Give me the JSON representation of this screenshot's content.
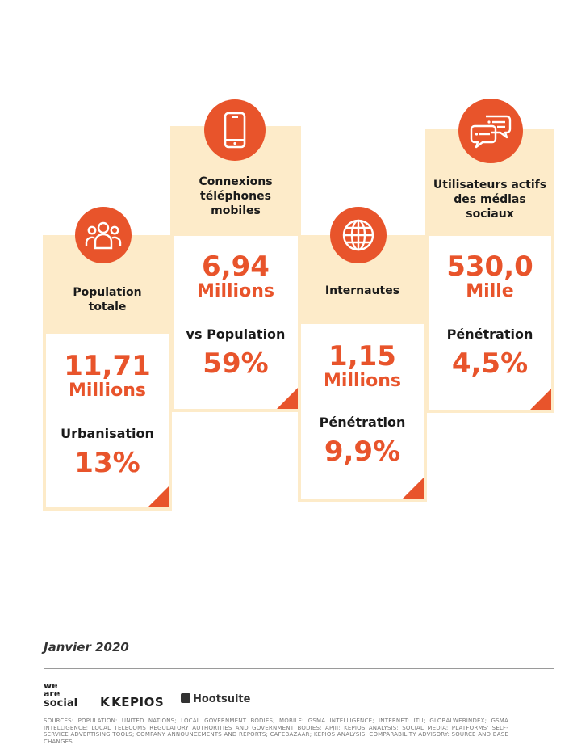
{
  "colors": {
    "accent": "#e8542b",
    "card_bg": "#fdebc9",
    "text": "#1a1a1a"
  },
  "stats": [
    {
      "icon": "people-icon",
      "label_lines": [
        "Population",
        "totale"
      ],
      "value": "11,71",
      "unit": "Millions",
      "sub_label": "Urbanisation",
      "sub_value": "13%"
    },
    {
      "icon": "mobile-phone-icon",
      "label_lines": [
        "Connexions",
        "téléphones",
        "mobiles"
      ],
      "value": "6,94",
      "unit": "Millions",
      "sub_label": "vs Population",
      "sub_value": "59%"
    },
    {
      "icon": "globe-icon",
      "label_lines": [
        "Internautes"
      ],
      "value": "1,15",
      "unit": "Millions",
      "sub_label": "Pénétration",
      "sub_value": "9,9%"
    },
    {
      "icon": "chat-bubbles-icon",
      "label_lines": [
        "Utilisateurs actifs",
        "des médias",
        "sociaux"
      ],
      "value": "530,0",
      "unit": "Mille",
      "sub_label": "Pénétration",
      "sub_value": "4,5%"
    }
  ],
  "footer": {
    "date": "Janvier 2020",
    "logos": {
      "we_are_social": [
        "we",
        "are",
        "social"
      ],
      "kepios": "KEPIOS",
      "hootsuite": "Hootsuite"
    },
    "sources": "SOURCES: POPULATION: UNITED NATIONS; LOCAL GOVERNMENT BODIES; MOBILE: GSMA INTELLIGENCE; INTERNET: ITU; GLOBALWEBINDEX; GSMA INTELLIGENCE; LOCAL TELECOMS REGULATORY AUTHORITIES AND GOVERNMENT BODIES; APJII; KEPIOS ANALYSIS; SOCIAL MEDIA: PLATFORMS' SELF-SERVICE ADVERTISING TOOLS; COMPANY ANNOUNCEMENTS AND REPORTS; CAFEBAZAAR; KEPIOS ANALYSIS. COMPARABILITY ADVISORY: SOURCE AND BASE CHANGES."
  }
}
